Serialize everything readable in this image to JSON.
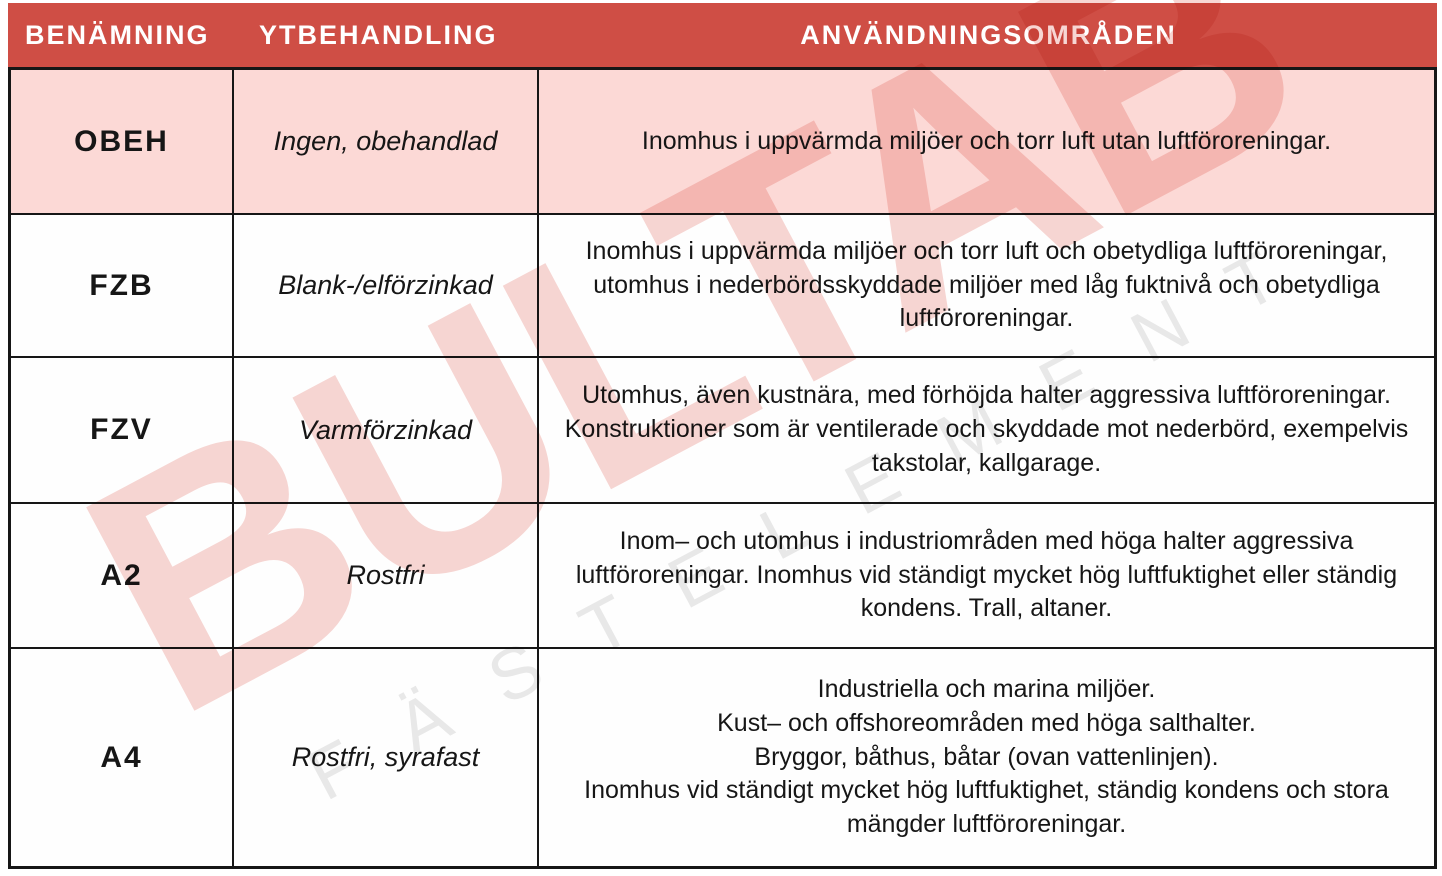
{
  "header": {
    "columns": [
      {
        "label": "BENÄMNING"
      },
      {
        "label": "YTBEHANDLING"
      },
      {
        "label": "ANVÄNDNINGSOMRÅDEN"
      }
    ]
  },
  "rows": [
    {
      "code": "OBEH",
      "treatment": "Ingen, obehandlad",
      "usage": "Inomhus i uppvärmda miljöer och torr luft utan luftföroreningar.",
      "highlighted": true
    },
    {
      "code": "FZB",
      "treatment": "Blank-/elförzinkad",
      "usage": "Inomhus i uppvärmda miljöer och torr luft och obetydliga luftföroreningar, utomhus i nederbördsskyddade miljöer med låg fuktnivå och obetydliga luftföroreningar.",
      "highlighted": false
    },
    {
      "code": "FZV",
      "treatment": "Varmförzinkad",
      "usage": "Utomhus, även kustnära, med förhöjda halter aggressiva luftföroreningar. Konstruktioner som är ventilerade och skyddade mot nederbörd, exempelvis takstolar, kallgarage.",
      "highlighted": false
    },
    {
      "code": "A2",
      "treatment": "Rostfri",
      "usage": "Inom– och utomhus i industriområden med höga halter aggressiva luftföroreningar. Inomhus vid ständigt mycket hög luftfuktighet eller ständig kondens. Trall, altaner.",
      "highlighted": false
    },
    {
      "code": "A4",
      "treatment": "Rostfri, syrafast",
      "usage": "Industriella och marina miljöer.\nKust– och offshoreområden med höga salthalter.\nBryggor, båthus, båtar (ovan vattenlinjen).\nInomhus vid ständigt mycket hög luftfuktighet, ständig kondens och stora mängder luftföroreningar.",
      "highlighted": false
    }
  ],
  "watermark": {
    "brand": "BULTAB",
    "tagline": "FÄSTELEMENT"
  },
  "colors": {
    "header_bg": "#CF4E45",
    "header_text": "#FFFFFF",
    "highlight_row_bg": "#FCD9D6",
    "border": "#161616",
    "watermark_brand": "#F7D6D3",
    "watermark_tagline": "#E9E9E9"
  }
}
